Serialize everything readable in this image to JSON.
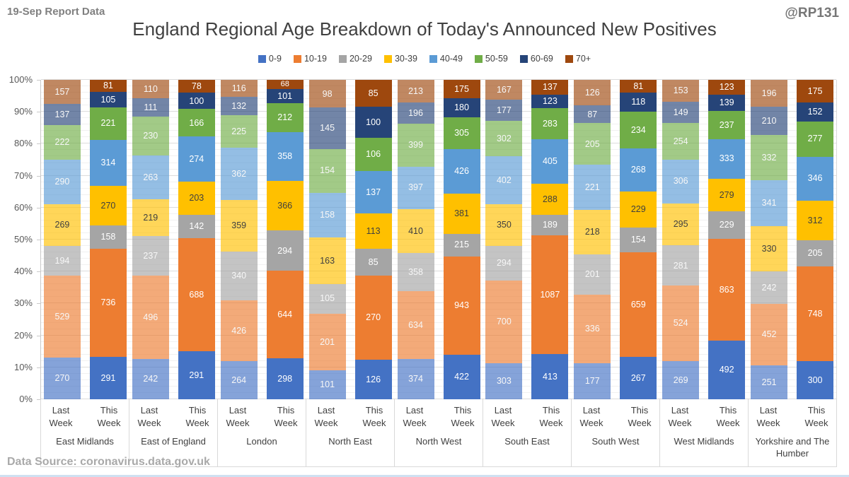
{
  "header": {
    "report_label": "19-Sep Report Data",
    "handle": "@RP131"
  },
  "title": "England Regional Age Breakdown of Today's Announced New Positives",
  "footer": {
    "source": "Data Source: coronavirus.data.gov.uk"
  },
  "axis": {
    "week_labels": [
      "Last Week",
      "This Week"
    ],
    "y_ticks": [
      "0%",
      "10%",
      "20%",
      "30%",
      "40%",
      "50%",
      "60%",
      "70%",
      "80%",
      "90%",
      "100%"
    ]
  },
  "chart_data": {
    "type": "bar",
    "stacked": "percent",
    "title": "England Regional Age Breakdown of Today's Announced New Positives",
    "ylim": [
      0,
      100
    ],
    "grid": "minor 2%, major 10%",
    "legend_position": "top",
    "age_groups": [
      {
        "label": "0-9",
        "color": "#4472C4"
      },
      {
        "label": "10-19",
        "color": "#ED7D31"
      },
      {
        "label": "20-29",
        "color": "#A5A5A5"
      },
      {
        "label": "30-39",
        "color": "#FFC000"
      },
      {
        "label": "40-49",
        "color": "#5B9BD5"
      },
      {
        "label": "50-59",
        "color": "#70AD47"
      },
      {
        "label": "60-69",
        "color": "#264478"
      },
      {
        "label": "70+",
        "color": "#9E480E"
      }
    ],
    "last_week_tint_alpha": 0.65,
    "value_order": "bottom to top follows age_groups order",
    "categories": [
      "East Midlands",
      "East of England",
      "London",
      "North East",
      "North West",
      "South East",
      "South West",
      "West Midlands",
      "Yorkshire and The Humber"
    ],
    "series_by_region": [
      {
        "region": "East Midlands",
        "last_week": [
          270,
          529,
          194,
          269,
          290,
          222,
          137,
          157
        ],
        "this_week": [
          291,
          736,
          158,
          270,
          314,
          221,
          105,
          81
        ]
      },
      {
        "region": "East of England",
        "last_week": [
          242,
          496,
          237,
          219,
          263,
          230,
          111,
          110
        ],
        "this_week": [
          291,
          688,
          142,
          203,
          274,
          166,
          100,
          78
        ]
      },
      {
        "region": "London",
        "last_week": [
          264,
          426,
          340,
          359,
          362,
          225,
          132,
          116
        ],
        "this_week": [
          298,
          644,
          294,
          366,
          358,
          212,
          101,
          68
        ]
      },
      {
        "region": "North East",
        "last_week": [
          101,
          201,
          105,
          163,
          158,
          154,
          145,
          98
        ],
        "this_week": [
          126,
          270,
          85,
          113,
          137,
          106,
          100,
          85
        ]
      },
      {
        "region": "North West",
        "last_week": [
          374,
          634,
          358,
          410,
          397,
          399,
          196,
          213
        ],
        "this_week": [
          422,
          943,
          215,
          381,
          426,
          305,
          180,
          175
        ]
      },
      {
        "region": "South East",
        "last_week": [
          303,
          700,
          294,
          350,
          402,
          302,
          177,
          167
        ],
        "this_week": [
          413,
          1087,
          189,
          288,
          405,
          283,
          123,
          137
        ]
      },
      {
        "region": "South West",
        "last_week": [
          177,
          336,
          201,
          218,
          221,
          205,
          87,
          126
        ],
        "this_week": [
          267,
          659,
          154,
          229,
          268,
          234,
          118,
          81
        ]
      },
      {
        "region": "West Midlands",
        "last_week": [
          269,
          524,
          281,
          295,
          306,
          254,
          149,
          153
        ],
        "this_week": [
          492,
          863,
          229,
          279,
          333,
          237,
          139,
          123
        ]
      },
      {
        "region": "Yorkshire and The Humber",
        "last_week": [
          251,
          452,
          242,
          330,
          341,
          332,
          210,
          196
        ],
        "this_week": [
          300,
          748,
          205,
          312,
          346,
          277,
          152,
          175
        ]
      }
    ]
  }
}
